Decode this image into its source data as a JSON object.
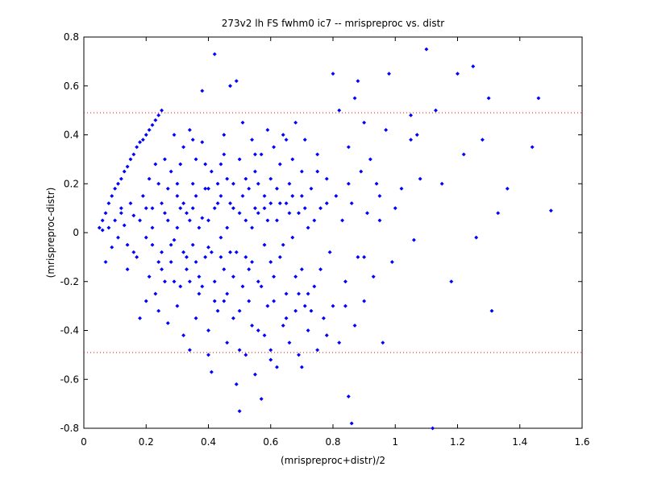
{
  "chart_data": {
    "type": "scatter",
    "title": "273v2 lh FS fwhm0 ic7 -- mrispreproc vs. distr",
    "xlabel": "(mrispreproc+distr)/2",
    "ylabel": "(mrispreproc-distr)",
    "xlim": [
      0,
      1.6
    ],
    "ylim": [
      -0.8,
      0.8
    ],
    "xticks": [
      0,
      0.2,
      0.4,
      0.6,
      0.8,
      1,
      1.2,
      1.4,
      1.6
    ],
    "yticks": [
      -0.8,
      -0.6,
      -0.4,
      -0.2,
      0,
      0.2,
      0.4,
      0.6,
      0.8
    ],
    "xtick_labels": [
      "0",
      "0.2",
      "0.4",
      "0.6",
      "0.8",
      "1",
      "1.2",
      "1.4",
      "1.6"
    ],
    "ytick_labels": [
      "-0.8",
      "-0.6",
      "-0.4",
      "-0.2",
      "0",
      "0.2",
      "0.4",
      "0.6",
      "0.8"
    ],
    "grid": false,
    "colors": {
      "points": "#0000ff",
      "limits": "#ff0000",
      "axes": "#000000"
    },
    "reference_lines": [
      {
        "y": 0.49,
        "style": "dotted",
        "color": "#ff0000"
      },
      {
        "y": -0.49,
        "style": "dotted",
        "color": "#ff0000"
      }
    ],
    "series": [
      {
        "points": [
          [
            0.05,
            0.02
          ],
          [
            0.06,
            0.01
          ],
          [
            0.06,
            0.05
          ],
          [
            0.07,
            0.08
          ],
          [
            0.07,
            -0.12
          ],
          [
            0.08,
            0.12
          ],
          [
            0.08,
            0.02
          ],
          [
            0.09,
            0.15
          ],
          [
            0.09,
            -0.06
          ],
          [
            0.1,
            0.18
          ],
          [
            0.1,
            0.05
          ],
          [
            0.11,
            0.2
          ],
          [
            0.11,
            -0.02
          ],
          [
            0.12,
            0.22
          ],
          [
            0.12,
            0.1
          ],
          [
            0.13,
            0.25
          ],
          [
            0.13,
            0.03
          ],
          [
            0.14,
            0.27
          ],
          [
            0.14,
            -0.05
          ],
          [
            0.15,
            0.3
          ],
          [
            0.15,
            0.12
          ],
          [
            0.16,
            0.32
          ],
          [
            0.16,
            0.07
          ],
          [
            0.17,
            0.35
          ],
          [
            0.17,
            -0.1
          ],
          [
            0.18,
            0.37
          ],
          [
            0.18,
            -0.35
          ],
          [
            0.19,
            0.38
          ],
          [
            0.19,
            0.15
          ],
          [
            0.2,
            0.4
          ],
          [
            0.2,
            -0.02
          ],
          [
            0.21,
            0.42
          ],
          [
            0.21,
            -0.18
          ],
          [
            0.22,
            0.44
          ],
          [
            0.22,
            0.1
          ],
          [
            0.23,
            0.46
          ],
          [
            0.23,
            -0.25
          ],
          [
            0.24,
            0.48
          ],
          [
            0.24,
            0.2
          ],
          [
            0.25,
            0.5
          ],
          [
            0.25,
            -0.08
          ],
          [
            0.12,
            0.08
          ],
          [
            0.14,
            -0.15
          ],
          [
            0.16,
            -0.08
          ],
          [
            0.18,
            0.05
          ],
          [
            0.2,
            -0.28
          ],
          [
            0.21,
            0.22
          ],
          [
            0.22,
            -0.05
          ],
          [
            0.23,
            0.28
          ],
          [
            0.24,
            -0.32
          ],
          [
            0.25,
            0.12
          ],
          [
            0.26,
            -0.2
          ],
          [
            0.26,
            0.3
          ],
          [
            0.27,
            0.05
          ],
          [
            0.27,
            -0.37
          ],
          [
            0.28,
            0.25
          ],
          [
            0.28,
            -0.12
          ],
          [
            0.29,
            0.4
          ],
          [
            0.29,
            -0.03
          ],
          [
            0.3,
            0.15
          ],
          [
            0.3,
            -0.3
          ],
          [
            0.31,
            0.1
          ],
          [
            0.31,
            -0.22
          ],
          [
            0.32,
            0.35
          ],
          [
            0.32,
            -0.42
          ],
          [
            0.33,
            0.08
          ],
          [
            0.33,
            -0.15
          ],
          [
            0.34,
            0.42
          ],
          [
            0.34,
            -0.48
          ],
          [
            0.35,
            0.2
          ],
          [
            0.35,
            -0.05
          ],
          [
            0.36,
            -0.35
          ],
          [
            0.36,
            0.3
          ],
          [
            0.37,
            0.02
          ],
          [
            0.37,
            -0.25
          ],
          [
            0.38,
            0.37
          ],
          [
            0.38,
            0.58
          ],
          [
            0.39,
            -0.1
          ],
          [
            0.39,
            0.18
          ],
          [
            0.4,
            -0.4
          ],
          [
            0.4,
            0.05
          ],
          [
            0.41,
            0.25
          ],
          [
            0.41,
            -0.57
          ],
          [
            0.42,
            0.73
          ],
          [
            0.42,
            -0.2
          ],
          [
            0.43,
            0.12
          ],
          [
            0.43,
            -0.32
          ],
          [
            0.44,
            0.28
          ],
          [
            0.44,
            -0.02
          ],
          [
            0.45,
            -0.15
          ],
          [
            0.45,
            0.4
          ],
          [
            0.46,
            0.22
          ],
          [
            0.46,
            -0.45
          ],
          [
            0.47,
            0.6
          ],
          [
            0.47,
            -0.08
          ],
          [
            0.48,
            0.1
          ],
          [
            0.48,
            -0.35
          ],
          [
            0.49,
            0.62
          ],
          [
            0.49,
            -0.62
          ],
          [
            0.5,
            0.3
          ],
          [
            0.5,
            -0.73
          ],
          [
            0.51,
            -0.22
          ],
          [
            0.51,
            0.45
          ],
          [
            0.52,
            0.05
          ],
          [
            0.52,
            -0.5
          ],
          [
            0.53,
            0.18
          ],
          [
            0.53,
            -0.28
          ],
          [
            0.54,
            0.38
          ],
          [
            0.54,
            -0.12
          ],
          [
            0.55,
            -0.58
          ],
          [
            0.55,
            0.25
          ],
          [
            0.56,
            0.08
          ],
          [
            0.56,
            -0.4
          ],
          [
            0.57,
            0.32
          ],
          [
            0.57,
            -0.68
          ],
          [
            0.58,
            -0.05
          ],
          [
            0.58,
            0.15
          ],
          [
            0.59,
            -0.3
          ],
          [
            0.59,
            0.42
          ],
          [
            0.6,
            0.22
          ],
          [
            0.6,
            -0.48
          ],
          [
            0.61,
            -0.18
          ],
          [
            0.61,
            0.35
          ],
          [
            0.62,
            0.05
          ],
          [
            0.62,
            -0.55
          ],
          [
            0.63,
            0.28
          ],
          [
            0.63,
            -0.1
          ],
          [
            0.64,
            0.4
          ],
          [
            0.64,
            -0.38
          ],
          [
            0.65,
            -0.25
          ],
          [
            0.65,
            0.12
          ],
          [
            0.66,
            0.2
          ],
          [
            0.66,
            -0.45
          ],
          [
            0.67,
            -0.02
          ],
          [
            0.67,
            0.3
          ],
          [
            0.68,
            -0.32
          ],
          [
            0.68,
            0.45
          ],
          [
            0.69,
            0.08
          ],
          [
            0.69,
            -0.5
          ],
          [
            0.7,
            -0.15
          ],
          [
            0.7,
            0.25
          ],
          [
            0.71,
            0.38
          ],
          [
            0.71,
            -0.3
          ],
          [
            0.72,
            0.02
          ],
          [
            0.72,
            -0.4
          ],
          [
            0.73,
            0.18
          ],
          [
            0.74,
            -0.22
          ],
          [
            0.75,
            0.32
          ],
          [
            0.75,
            -0.48
          ],
          [
            0.76,
            0.1
          ],
          [
            0.77,
            -0.35
          ],
          [
            0.78,
            0.22
          ],
          [
            0.79,
            -0.08
          ],
          [
            0.8,
            0.65
          ],
          [
            0.8,
            -0.3
          ],
          [
            0.81,
            0.15
          ],
          [
            0.82,
            -0.45
          ],
          [
            0.82,
            0.5
          ],
          [
            0.83,
            0.05
          ],
          [
            0.84,
            -0.2
          ],
          [
            0.85,
            0.35
          ],
          [
            0.85,
            -0.67
          ],
          [
            0.86,
            -0.78
          ],
          [
            0.86,
            0.12
          ],
          [
            0.87,
            0.55
          ],
          [
            0.87,
            -0.38
          ],
          [
            0.88,
            -0.1
          ],
          [
            0.88,
            0.62
          ],
          [
            0.89,
            0.25
          ],
          [
            0.9,
            -0.28
          ],
          [
            0.9,
            0.45
          ],
          [
            0.91,
            0.08
          ],
          [
            0.92,
            0.3
          ],
          [
            0.93,
            -0.18
          ],
          [
            0.94,
            0.2
          ],
          [
            0.95,
            0.15
          ],
          [
            0.96,
            -0.45
          ],
          [
            0.97,
            0.42
          ],
          [
            0.98,
            0.65
          ],
          [
            0.99,
            -0.12
          ],
          [
            1.0,
            0.1
          ],
          [
            1.02,
            0.18
          ],
          [
            1.05,
            0.48
          ],
          [
            1.05,
            0.38
          ],
          [
            1.06,
            -0.03
          ],
          [
            1.07,
            0.4
          ],
          [
            1.08,
            0.22
          ],
          [
            1.1,
            0.75
          ],
          [
            1.12,
            -0.8
          ],
          [
            1.13,
            0.5
          ],
          [
            1.15,
            0.2
          ],
          [
            1.18,
            -0.2
          ],
          [
            1.2,
            0.65
          ],
          [
            1.22,
            0.32
          ],
          [
            1.25,
            0.68
          ],
          [
            1.26,
            -0.02
          ],
          [
            1.28,
            0.38
          ],
          [
            1.3,
            0.55
          ],
          [
            1.31,
            -0.32
          ],
          [
            1.33,
            0.08
          ],
          [
            1.36,
            0.18
          ],
          [
            1.44,
            0.35
          ],
          [
            1.46,
            0.55
          ],
          [
            1.5,
            0.09
          ],
          [
            0.2,
            0.1
          ],
          [
            0.22,
            0.02
          ],
          [
            0.24,
            -0.12
          ],
          [
            0.26,
            0.08
          ],
          [
            0.28,
            -0.05
          ],
          [
            0.3,
            0.02
          ],
          [
            0.32,
            -0.08
          ],
          [
            0.34,
            0.05
          ],
          [
            0.36,
            -0.12
          ],
          [
            0.38,
            0.06
          ],
          [
            0.4,
            -0.06
          ],
          [
            0.42,
            0.1
          ],
          [
            0.44,
            -0.1
          ],
          [
            0.46,
            0.02
          ],
          [
            0.48,
            -0.18
          ],
          [
            0.5,
            0.08
          ],
          [
            0.52,
            -0.1
          ],
          [
            0.54,
            0.02
          ],
          [
            0.56,
            -0.2
          ],
          [
            0.58,
            0.1
          ],
          [
            0.6,
            -0.12
          ],
          [
            0.62,
            0.18
          ],
          [
            0.64,
            -0.05
          ],
          [
            0.66,
            0.08
          ],
          [
            0.68,
            -0.18
          ],
          [
            0.7,
            0.15
          ],
          [
            0.72,
            -0.25
          ],
          [
            0.74,
            0.05
          ],
          [
            0.76,
            -0.15
          ],
          [
            0.78,
            0.12
          ],
          [
            0.3,
            0.2
          ],
          [
            0.32,
            0.12
          ],
          [
            0.34,
            -0.2
          ],
          [
            0.36,
            0.15
          ],
          [
            0.38,
            -0.22
          ],
          [
            0.4,
            0.18
          ],
          [
            0.42,
            -0.28
          ],
          [
            0.44,
            0.15
          ],
          [
            0.46,
            -0.25
          ],
          [
            0.48,
            0.2
          ],
          [
            0.5,
            -0.32
          ],
          [
            0.52,
            0.22
          ],
          [
            0.54,
            -0.38
          ],
          [
            0.56,
            0.2
          ],
          [
            0.58,
            -0.42
          ],
          [
            0.6,
            0.12
          ],
          [
            0.25,
            -0.15
          ],
          [
            0.27,
            0.18
          ],
          [
            0.29,
            -0.2
          ],
          [
            0.31,
            0.28
          ],
          [
            0.33,
            -0.1
          ],
          [
            0.35,
            0.1
          ],
          [
            0.37,
            -0.18
          ],
          [
            0.39,
            0.28
          ],
          [
            0.41,
            -0.08
          ],
          [
            0.43,
            0.2
          ],
          [
            0.45,
            -0.28
          ],
          [
            0.47,
            0.12
          ],
          [
            0.49,
            -0.08
          ],
          [
            0.51,
            0.15
          ],
          [
            0.53,
            -0.15
          ],
          [
            0.55,
            0.1
          ],
          [
            0.57,
            -0.22
          ],
          [
            0.59,
            0.05
          ],
          [
            0.61,
            -0.28
          ],
          [
            0.63,
            0.12
          ],
          [
            0.65,
            -0.35
          ],
          [
            0.67,
            0.15
          ],
          [
            0.69,
            -0.25
          ],
          [
            0.71,
            0.1
          ],
          [
            0.73,
            -0.32
          ],
          [
            0.35,
            0.38
          ],
          [
            0.45,
            0.32
          ],
          [
            0.55,
            0.32
          ],
          [
            0.65,
            0.38
          ],
          [
            0.75,
            0.25
          ],
          [
            0.85,
            0.2
          ],
          [
            0.4,
            -0.5
          ],
          [
            0.5,
            -0.48
          ],
          [
            0.6,
            -0.52
          ],
          [
            0.7,
            -0.55
          ],
          [
            0.78,
            -0.42
          ],
          [
            0.84,
            -0.3
          ],
          [
            0.9,
            -0.1
          ],
          [
            0.95,
            0.05
          ]
        ]
      }
    ]
  }
}
